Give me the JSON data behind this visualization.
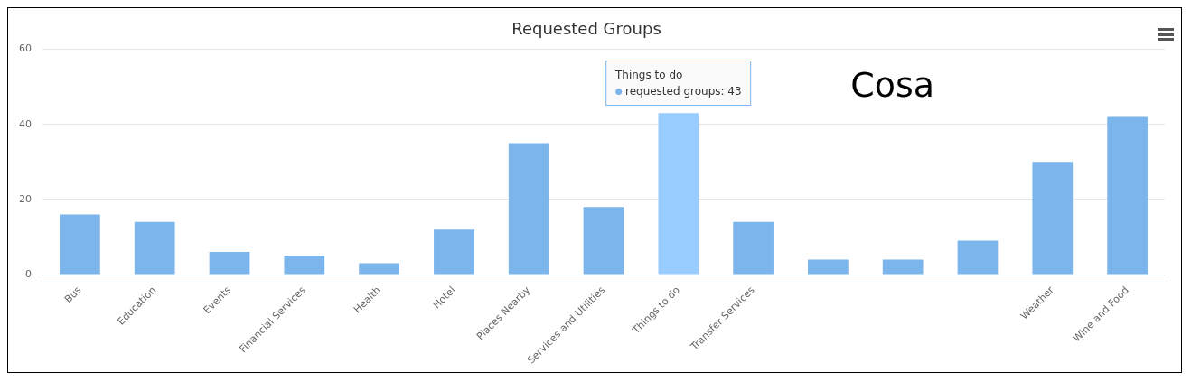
{
  "chart_data": {
    "type": "bar",
    "title": "Requested Groups",
    "categories": [
      "Bus",
      "Education",
      "Events",
      "Financial Services",
      "Health",
      "Hotel",
      "Places Nearby",
      "Services and Utilities",
      "Things to do",
      "Transfer Services",
      null,
      null,
      null,
      "Weather",
      "Wine and Food"
    ],
    "series": [
      {
        "color": "#7cb5ec",
        "colors": [
          "#7cb5ec",
          "#7cb5ec",
          "#7cb5ec",
          "#7cb5ec",
          "#7cb5ec",
          "#7cb5ec",
          "#7cb5ec",
          "#7cb5ec",
          "#99ccff",
          "#7cb5ec",
          "#7cb5ec",
          "#7cb5ec",
          "#7cb5ec",
          "#7cb5ec",
          "#7cb5ec"
        ],
        "values": [
          16,
          14,
          6,
          5,
          3,
          12,
          35,
          18,
          43,
          14,
          4,
          4,
          9,
          30,
          42
        ]
      }
    ],
    "ylim": [
      0,
      60
    ],
    "yticks": [
      0,
      20,
      40,
      60
    ],
    "grid": "y",
    "annotations": [
      {
        "text": "Things to do\nrequested groups: 43",
        "x": "Things to do",
        "y": 43
      },
      "Cosa"
    ]
  }
}
